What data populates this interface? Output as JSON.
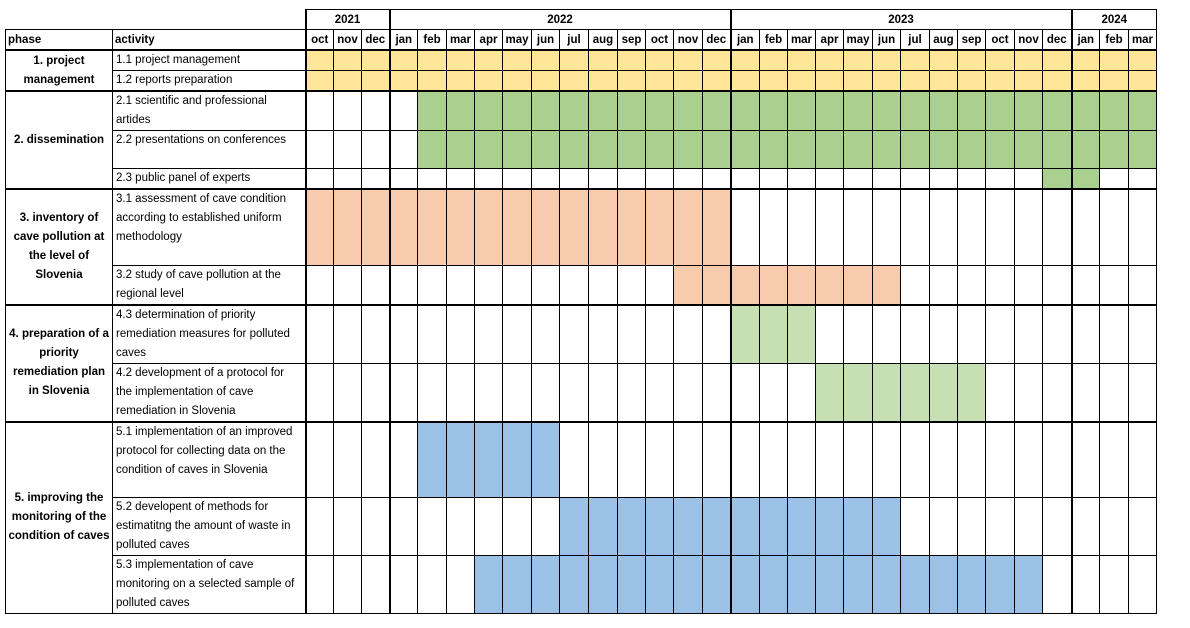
{
  "colors": {
    "p1": "#FFE699",
    "p2": "#A9D08E",
    "p3": "#F8CBAD",
    "p4": "#C6E0B4",
    "p5": "#9BC2E6"
  },
  "header": {
    "phase_label": "phase",
    "activity_label": "activity",
    "years": [
      {
        "label": "2021",
        "span": 3
      },
      {
        "label": "2022",
        "span": 12
      },
      {
        "label": "2023",
        "span": 12
      },
      {
        "label": "2024",
        "span": 3
      }
    ],
    "months": [
      "oct",
      "nov",
      "dec",
      "jan",
      "feb",
      "mar",
      "apr",
      "may",
      "jun",
      "jul",
      "aug",
      "sep",
      "oct",
      "nov",
      "dec",
      "jan",
      "feb",
      "mar",
      "apr",
      "may",
      "jun",
      "jul",
      "aug",
      "sep",
      "oct",
      "nov",
      "dec",
      "jan",
      "feb",
      "mar"
    ]
  },
  "phases": [
    {
      "label": "1. project management",
      "color": "p1",
      "rows": [
        {
          "activity": "1.1 project management",
          "start": 0,
          "end": 29,
          "h": 19
        },
        {
          "activity": "1.2 reports preparation",
          "start": 0,
          "end": 29,
          "h": 19
        }
      ]
    },
    {
      "label": "2. dissemination",
      "color": "p2",
      "rows": [
        {
          "activity": "2.1 scientific and professional artides",
          "start": 4,
          "end": 29,
          "h": 38
        },
        {
          "activity": "2.2 presentations on conferences",
          "start": 4,
          "end": 29,
          "h": 38
        },
        {
          "activity": "2.3 public panel of experts",
          "start": 26,
          "end": 27,
          "h": 19
        }
      ]
    },
    {
      "label": "3. inventory of cave pollution at the level of Slovenia",
      "color": "p3",
      "rows": [
        {
          "activity": "3.1 assessment of cave condition according to established uniform methodology",
          "start": 0,
          "end": 14,
          "h": 76
        },
        {
          "activity": "3.2 study of cave pollution at the regional level",
          "start": 13,
          "end": 20,
          "h": 38
        }
      ]
    },
    {
      "label": "4. preparation of a priority remediation plan in Slovenia",
      "color": "p4",
      "rows": [
        {
          "activity": "4.3 determination of priority remediation measures for polluted caves",
          "start": 15,
          "end": 17,
          "h": 57
        },
        {
          "activity": "4.2 development of a protocol for the implementation of cave remediation in Slovenia",
          "start": 18,
          "end": 23,
          "h": 57
        }
      ]
    },
    {
      "label": "5. improving the monitoring of the condition of caves",
      "color": "p5",
      "rows": [
        {
          "activity": "5.1 implementation of an improved protocol for collecting data on the condition of caves in Slovenia",
          "start": 4,
          "end": 8,
          "h": 76
        },
        {
          "activity": "5.2 developent of methods for estimatitng the amount of waste in polluted caves",
          "start": 9,
          "end": 20,
          "h": 57
        },
        {
          "activity": "5.3 implementation of cave monitoring on a selected sample of polluted caves",
          "start": 6,
          "end": 25,
          "h": 57
        }
      ]
    }
  ]
}
